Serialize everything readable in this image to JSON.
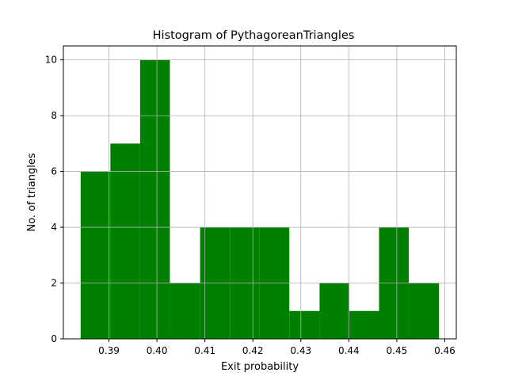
{
  "chart_data": {
    "type": "bar",
    "title": "Histogram of PythagoreanTriangles",
    "xlabel": "Exit probability",
    "ylabel": "No. of triangles",
    "xlim": [
      0.3805,
      0.4624
    ],
    "ylim": [
      0,
      10.5
    ],
    "x_ticks": [
      0.39,
      0.4,
      0.41,
      0.42,
      0.43,
      0.44,
      0.45,
      0.46
    ],
    "x_tick_labels": [
      "0.39",
      "0.40",
      "0.41",
      "0.42",
      "0.43",
      "0.44",
      "0.45",
      "0.46"
    ],
    "y_ticks": [
      0,
      2,
      4,
      6,
      8,
      10
    ],
    "y_tick_labels": [
      "0",
      "2",
      "4",
      "6",
      "8",
      "10"
    ],
    "bin_edges": [
      0.3841,
      0.3903,
      0.3965,
      0.4027,
      0.409,
      0.4152,
      0.4214,
      0.4276,
      0.4339,
      0.4401,
      0.4463,
      0.4525,
      0.4588
    ],
    "values": [
      6,
      7,
      10,
      2,
      4,
      4,
      4,
      1,
      2,
      1,
      4,
      2
    ],
    "bar_color": "#008000",
    "grid": true,
    "legend": "none"
  }
}
